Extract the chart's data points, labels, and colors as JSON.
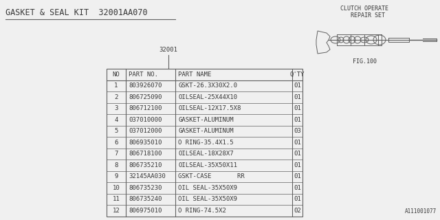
{
  "title": "GASKET & SEAL KIT  32001AA070",
  "subtitle_label": "32001",
  "fig_label": "FIG.100",
  "clutch_label": "CLUTCH OPERATE\n  REPAIR SET",
  "footer": "A111001077",
  "table_headers": [
    "NO",
    "PART NO.",
    "PART NAME",
    "Q'TY"
  ],
  "table_rows": [
    [
      "1",
      "803926070",
      "GSKT-26.3X30X2.0",
      "01"
    ],
    [
      "2",
      "806725090",
      "OILSEAL-25X44X10",
      "01"
    ],
    [
      "3",
      "806712100",
      "OILSEAL-12X17.5X8",
      "01"
    ],
    [
      "4",
      "037010000",
      "GASKET-ALUMINUM",
      "01"
    ],
    [
      "5",
      "037012000",
      "GASKET-ALUMINUM",
      "03"
    ],
    [
      "6",
      "806935010",
      "O RING-35.4X1.5",
      "01"
    ],
    [
      "7",
      "806718100",
      "OILSEAL-18X28X7",
      "01"
    ],
    [
      "8",
      "806735210",
      "OILSEAL-35X50X11",
      "01"
    ],
    [
      "9",
      "32145AA030",
      "GSKT-CASE       RR",
      "01"
    ],
    [
      "10",
      "806735230",
      "OIL SEAL-35X50X9",
      "01"
    ],
    [
      "11",
      "806735240",
      "OIL SEAL-35X50X9",
      "01"
    ],
    [
      "12",
      "806975010",
      "O RING-74.5X2",
      "02"
    ]
  ],
  "bg_color": "#f0f0f0",
  "table_text_color": "#383838",
  "title_color": "#383838",
  "line_color": "#606060",
  "font_size_title": 8.5,
  "font_size_table": 6.5,
  "font_size_label": 6.0,
  "font_size_footer": 5.5
}
